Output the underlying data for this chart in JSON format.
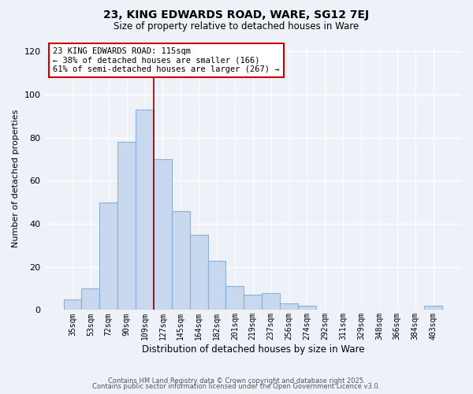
{
  "title_line1": "23, KING EDWARDS ROAD, WARE, SG12 7EJ",
  "title_line2": "Size of property relative to detached houses in Ware",
  "xlabel": "Distribution of detached houses by size in Ware",
  "ylabel": "Number of detached properties",
  "bar_labels": [
    "35sqm",
    "53sqm",
    "72sqm",
    "90sqm",
    "109sqm",
    "127sqm",
    "145sqm",
    "164sqm",
    "182sqm",
    "201sqm",
    "219sqm",
    "237sqm",
    "256sqm",
    "274sqm",
    "292sqm",
    "311sqm",
    "329sqm",
    "348sqm",
    "366sqm",
    "384sqm",
    "403sqm"
  ],
  "bar_values": [
    5,
    10,
    50,
    78,
    93,
    70,
    46,
    35,
    23,
    11,
    7,
    8,
    3,
    2,
    0,
    0,
    0,
    0,
    0,
    0,
    2
  ],
  "bar_color": "#c8d8ee",
  "bar_edgecolor": "#8ab0d8",
  "bar_linewidth": 0.8,
  "vline_index": 4.5,
  "vline_color": "#880000",
  "annotation_text": "23 KING EDWARDS ROAD: 115sqm\n← 38% of detached houses are smaller (166)\n61% of semi-detached houses are larger (267) →",
  "annotation_box_edgecolor": "#cc0000",
  "annotation_box_facecolor": "#ffffff",
  "ylim": [
    0,
    122
  ],
  "yticks": [
    0,
    20,
    40,
    60,
    80,
    100,
    120
  ],
  "footer_line1": "Contains HM Land Registry data © Crown copyright and database right 2025.",
  "footer_line2": "Contains public sector information licensed under the Open Government Licence v3.0.",
  "background_color": "#eef2f8",
  "plot_background_color": "#eef2f8"
}
